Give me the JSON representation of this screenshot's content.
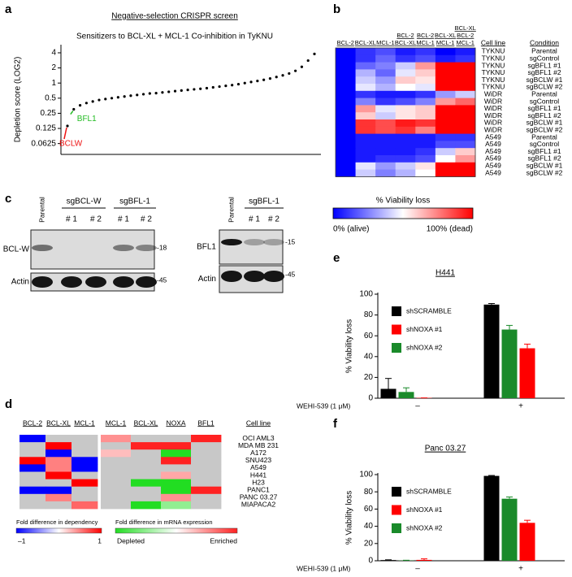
{
  "chart_data": [
    {
      "panel": "a",
      "type": "scatter",
      "title": "Negative-selection CRISPR screen",
      "subtitle": "Sensitizers to BCL-XL + MCL-1 Co-inhibition in TyKNU",
      "ylabel": "Depletion score (LOG2)",
      "y_scale": "log",
      "ylim": [
        0.038,
        5.8
      ],
      "yticks": [
        0.0625,
        0.125,
        0.25,
        0.5,
        1,
        2,
        4
      ],
      "color": "#000000",
      "values": [
        0.14,
        0.3,
        0.36,
        0.4,
        0.43,
        0.46,
        0.48,
        0.5,
        0.52,
        0.54,
        0.56,
        0.58,
        0.6,
        0.62,
        0.63,
        0.65,
        0.67,
        0.69,
        0.71,
        0.73,
        0.75,
        0.77,
        0.79,
        0.82,
        0.85,
        0.88,
        0.91,
        0.95,
        1.0,
        1.05,
        1.1,
        1.16,
        1.23,
        1.32,
        1.42,
        1.55,
        1.75,
        2.1,
        2.8,
        3.8
      ],
      "annotations": [
        {
          "text": "BFL1",
          "color": "#22bb22"
        },
        {
          "text": "BCLW",
          "color": "#ee1111"
        }
      ]
    },
    {
      "panel": "b",
      "type": "heatmap",
      "columns": [
        [
          "BCL-2"
        ],
        [
          "BCL-XL"
        ],
        [
          "MCL-1"
        ],
        [
          "BCL-2",
          "BCL-XL"
        ],
        [
          "BCL-2",
          "MCL-1"
        ],
        [
          "BCL-XL",
          "MCL-1"
        ],
        [
          "BCL-XL",
          "BCL-2",
          "MCL-1"
        ]
      ],
      "row_headers": [
        "Cell line",
        "Condition"
      ],
      "rows": [
        [
          "TYKNU",
          "Parental"
        ],
        [
          "TYKNU",
          "sgControl"
        ],
        [
          "TYKNU",
          "sgBFL1 #1"
        ],
        [
          "TYKNU",
          "sgBFL1 #2"
        ],
        [
          "TYKNU",
          "sgBCLW #1"
        ],
        [
          "TYKNU",
          "sgBCLW #2"
        ],
        [
          "WiDR",
          "Parental"
        ],
        [
          "WiDR",
          "sgControl"
        ],
        [
          "WiDR",
          "sgBFL1 #1"
        ],
        [
          "WiDR",
          "sgBFL1 #2"
        ],
        [
          "WiDR",
          "sgBCLW #1"
        ],
        [
          "WiDR",
          "sgBCLW #2"
        ],
        [
          "A549",
          "Parental"
        ],
        [
          "A549",
          "sgControl"
        ],
        [
          "A549",
          "sgBFL1 #1"
        ],
        [
          "A549",
          "sgBFL1 #2"
        ],
        [
          "A549",
          "sgBCLW #1"
        ],
        [
          "A549",
          "sgBCLW #2"
        ]
      ],
      "values": [
        [
          0,
          10,
          15,
          5,
          10,
          0,
          5
        ],
        [
          0,
          10,
          20,
          10,
          15,
          5,
          10
        ],
        [
          0,
          20,
          25,
          40,
          70,
          100,
          100
        ],
        [
          0,
          35,
          20,
          45,
          60,
          100,
          100
        ],
        [
          0,
          40,
          30,
          60,
          55,
          100,
          100
        ],
        [
          0,
          45,
          35,
          50,
          45,
          100,
          100
        ],
        [
          0,
          10,
          5,
          5,
          10,
          30,
          40
        ],
        [
          0,
          25,
          10,
          15,
          25,
          70,
          80
        ],
        [
          0,
          70,
          45,
          55,
          60,
          100,
          100
        ],
        [
          0,
          60,
          40,
          55,
          60,
          100,
          100
        ],
        [
          0,
          90,
          85,
          95,
          90,
          100,
          100
        ],
        [
          0,
          90,
          85,
          90,
          75,
          100,
          100
        ],
        [
          0,
          5,
          5,
          5,
          5,
          10,
          10
        ],
        [
          0,
          5,
          5,
          5,
          5,
          15,
          15
        ],
        [
          0,
          5,
          5,
          5,
          10,
          40,
          60
        ],
        [
          0,
          5,
          10,
          10,
          15,
          50,
          70
        ],
        [
          0,
          45,
          30,
          40,
          55,
          100,
          100
        ],
        [
          0,
          40,
          25,
          35,
          50,
          100,
          100
        ]
      ],
      "zlim": [
        0,
        100
      ],
      "colors": [
        "#0000ff",
        "#ffffff",
        "#ff0000"
      ],
      "colorbar": {
        "label": "% Viability loss",
        "min_label": "0% (alive)",
        "max_label": "100% (dead)"
      }
    },
    {
      "panel": "d",
      "type": "grouped_heatmap",
      "row_header": "Cell line",
      "rows": [
        "OCI AML3",
        "MDA MB 231",
        "A172",
        "SNU423",
        "A549",
        "H441",
        "H23",
        "PANC1",
        "PANC 03.27",
        "MIAPACA2"
      ],
      "null_color": "#c8c8c8",
      "groups": [
        {
          "columns": [
            "BCL-2",
            "BCL-XL",
            "MCL-1"
          ],
          "zlim": [
            -1,
            1
          ],
          "colors": [
            "#0000ff",
            "#ffffff",
            "#ff0000"
          ],
          "values": [
            [
              -1,
              null,
              null
            ],
            [
              null,
              1,
              null
            ],
            [
              null,
              -1,
              null
            ],
            [
              1,
              0.5,
              -1
            ],
            [
              -1,
              0.5,
              -1
            ],
            [
              null,
              1,
              null
            ],
            [
              null,
              null,
              1
            ],
            [
              -1,
              -1,
              null
            ],
            [
              null,
              0.5,
              null
            ],
            [
              null,
              null,
              0.6
            ]
          ],
          "legend": {
            "title": "Fold difference in dependency",
            "min_label": "–1",
            "max_label": "1"
          }
        },
        {
          "columns": [
            "MCL-1",
            "BCL-XL",
            "NOXA",
            "BFL1"
          ],
          "zlim": [
            -1,
            1
          ],
          "colors": [
            "#22dd22",
            "#ffffff",
            "#ff2222"
          ],
          "values": [
            [
              0.5,
              null,
              null,
              1
            ],
            [
              null,
              1,
              1,
              null
            ],
            [
              0.3,
              null,
              -1,
              null
            ],
            [
              null,
              null,
              1,
              null
            ],
            [
              null,
              null,
              null,
              null
            ],
            [
              null,
              null,
              0.4,
              null
            ],
            [
              null,
              -1,
              -1,
              null
            ],
            [
              null,
              null,
              -1,
              1
            ],
            [
              null,
              null,
              0.5,
              null
            ],
            [
              null,
              -1,
              -0.5,
              null
            ]
          ],
          "legend": {
            "title": "Fold difference in mRNA expression",
            "min_label": "Depleted",
            "max_label": "Enriched"
          }
        }
      ]
    },
    {
      "panel": "e",
      "type": "bar",
      "title": "H441",
      "ylabel": "% Viability loss",
      "xlabel": "WEHI-539 (1 μM)",
      "categories": [
        "–",
        "+"
      ],
      "ylim": [
        0,
        100
      ],
      "yticks": [
        0,
        20,
        40,
        60,
        80,
        100
      ],
      "series": [
        {
          "name": "shSCRAMBLE",
          "color": "#000000",
          "values": [
            9,
            90
          ],
          "errors": [
            10,
            1
          ]
        },
        {
          "name": "shNOXA #1",
          "color": "#ff0000",
          "values": [
            0.3,
            48
          ],
          "errors": [
            0,
            4
          ]
        },
        {
          "name": "shNOXA #2",
          "color": "#1a8a2a",
          "values": [
            6,
            66
          ],
          "errors": [
            4,
            4
          ]
        }
      ]
    },
    {
      "panel": "f",
      "type": "bar",
      "title": "Panc 03.27",
      "ylabel": "% Viability loss",
      "xlabel": "WEHI-539 (1 μM)",
      "categories": [
        "–",
        "+"
      ],
      "ylim": [
        0,
        100
      ],
      "yticks": [
        0,
        20,
        40,
        60,
        80,
        100
      ],
      "series": [
        {
          "name": "shSCRAMBLE",
          "color": "#000000",
          "values": [
            0.8,
            98.5
          ],
          "errors": [
            0.3,
            0.5
          ]
        },
        {
          "name": "shNOXA #1",
          "color": "#ff0000",
          "values": [
            1,
            44
          ],
          "errors": [
            1.2,
            3
          ]
        },
        {
          "name": "shNOXA #2",
          "color": "#1a8a2a",
          "values": [
            0.3,
            72
          ],
          "errors": [
            0.3,
            2
          ]
        }
      ]
    }
  ],
  "western_blot": {
    "panel": "c",
    "blots": [
      {
        "lane_labels": [
          "Parental"
        ],
        "groups": [
          {
            "name": "sgBCL-W",
            "lanes": [
              "# 1",
              "# 2"
            ]
          },
          {
            "name": "sgBFL-1",
            "lanes": [
              "# 1",
              "# 2"
            ]
          }
        ],
        "rows": [
          {
            "label": "BCL-W",
            "marker": "-18"
          },
          {
            "label": "Actin",
            "marker": "-45"
          }
        ]
      },
      {
        "lane_labels": [
          "Parental"
        ],
        "groups": [
          {
            "name": "sgBFL-1",
            "lanes": [
              "# 1",
              "# 2"
            ]
          }
        ],
        "rows": [
          {
            "label": "BFL1",
            "marker": "-15"
          },
          {
            "label": "Actin",
            "marker": "-45"
          }
        ]
      }
    ]
  }
}
